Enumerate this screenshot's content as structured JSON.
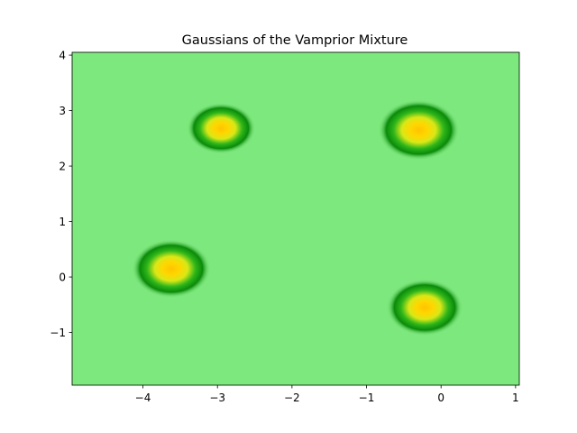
{
  "chart_data": {
    "type": "heatmap",
    "title": "Gaussians of the Vamprior Mixture",
    "xlabel": "",
    "ylabel": "",
    "xlim": [
      -4.95,
      1.05
    ],
    "ylim": [
      -1.95,
      4.05
    ],
    "xticks": [
      -4,
      -3,
      -2,
      -1,
      0,
      1
    ],
    "xtick_labels": [
      "−4",
      "−3",
      "−2",
      "−1",
      "0",
      "1"
    ],
    "yticks": [
      -1,
      0,
      1,
      2,
      3,
      4
    ],
    "ytick_labels": [
      "−1",
      "0",
      "1",
      "2",
      "3",
      "4"
    ],
    "grid": false,
    "legend": "none",
    "colormap": {
      "background": "#7de87d",
      "stops": [
        "#7de87d",
        "#0a8a0a",
        "#2fb61a",
        "#d8e818",
        "#ffd700",
        "#ffc400"
      ]
    },
    "components": [
      {
        "mean": [
          -2.95,
          2.68
        ],
        "std": 0.27
      },
      {
        "mean": [
          -0.3,
          2.65
        ],
        "std": 0.32
      },
      {
        "mean": [
          -3.62,
          0.15
        ],
        "std": 0.31
      },
      {
        "mean": [
          -0.22,
          -0.55
        ],
        "std": 0.3
      }
    ]
  }
}
